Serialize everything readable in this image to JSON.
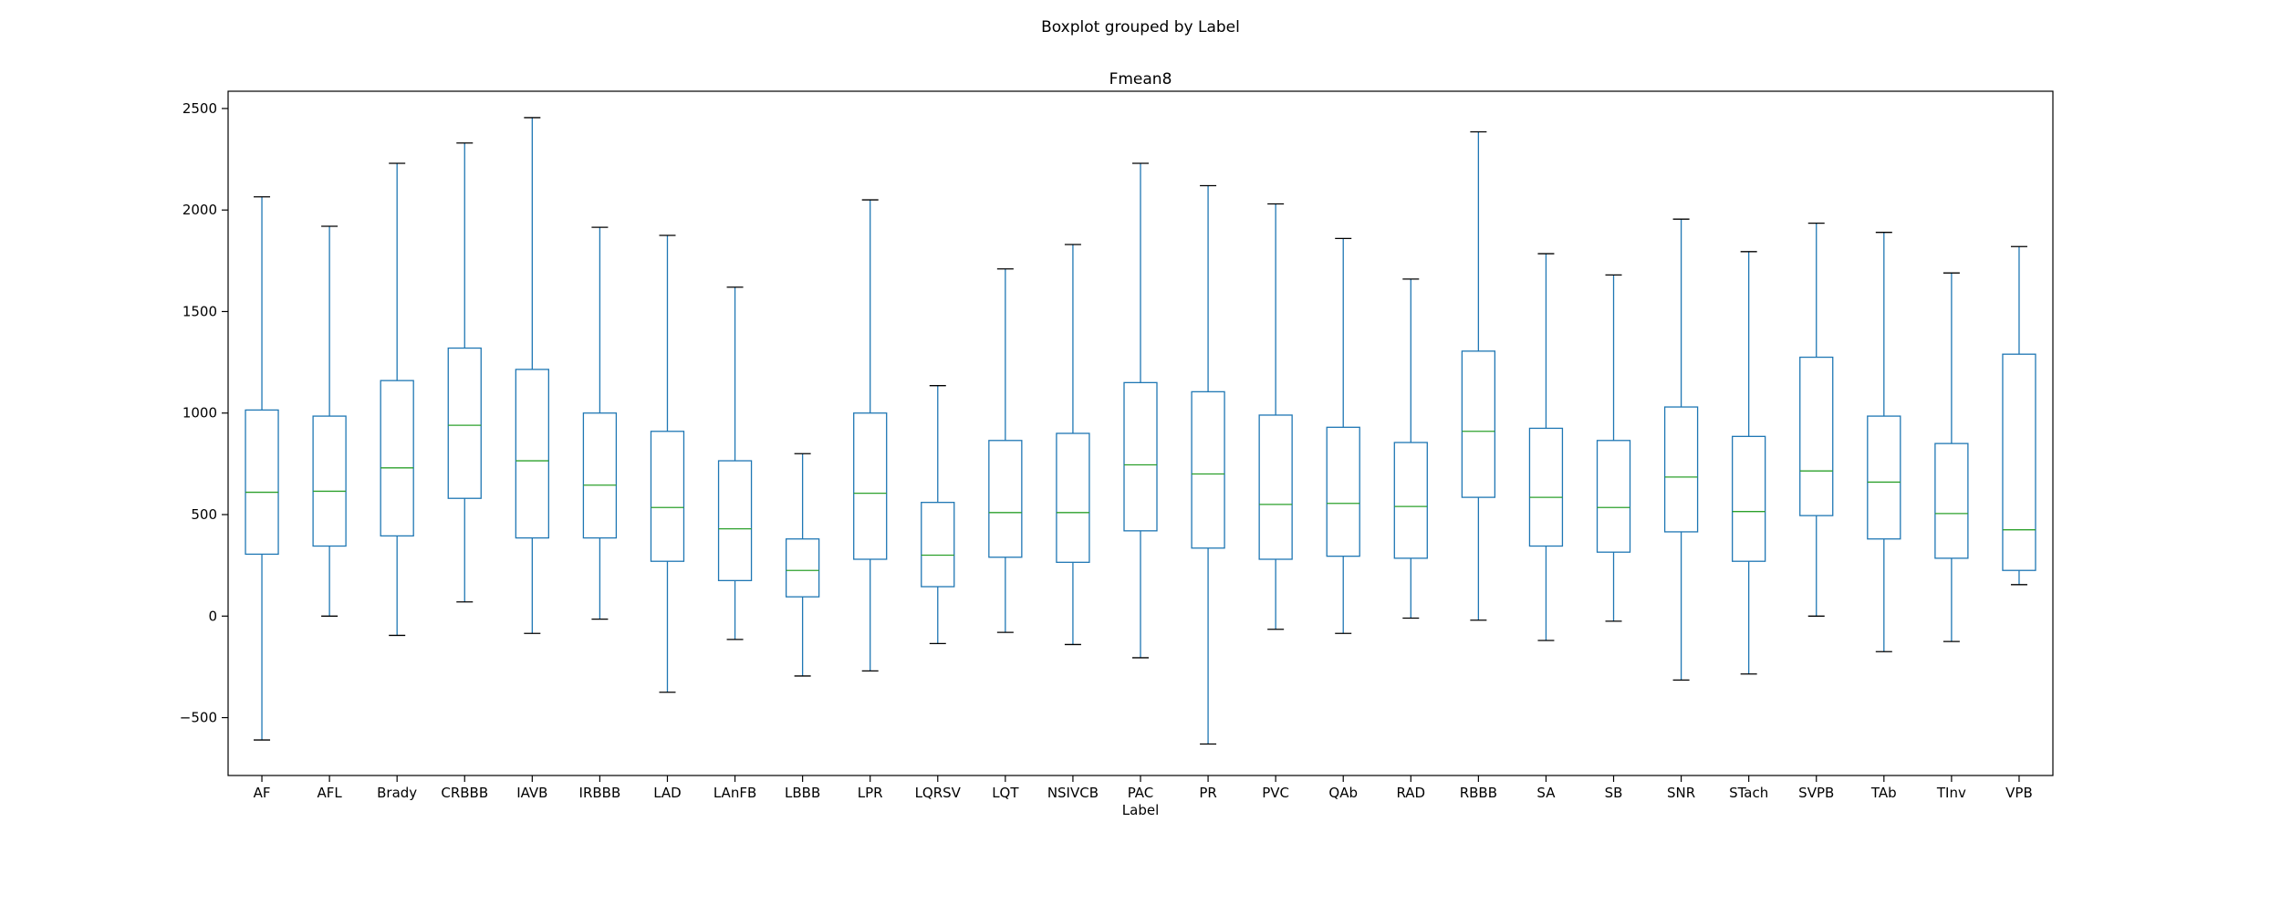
{
  "chart_data": {
    "type": "boxplot",
    "suptitle": "Boxplot grouped by Label",
    "title": "Fmean8",
    "xlabel": "Label",
    "ylabel": "",
    "ylim": [
      -785,
      2585
    ],
    "yticks": [
      -500,
      0,
      500,
      1000,
      1500,
      2000,
      2500
    ],
    "ytick_labels": [
      "−500",
      "0",
      "500",
      "1000",
      "1500",
      "2000",
      "2500"
    ],
    "grid": false,
    "box_color": "#1f77b4",
    "median_color": "#2ca02c",
    "whisker_cap_color": "#000000",
    "categories": [
      "AF",
      "AFL",
      "Brady",
      "CRBBB",
      "IAVB",
      "IRBBB",
      "LAD",
      "LAnFB",
      "LBBB",
      "LPR",
      "LQRSV",
      "LQT",
      "NSIVCB",
      "PAC",
      "PR",
      "PVC",
      "QAb",
      "RAD",
      "RBBB",
      "SA",
      "SB",
      "SNR",
      "STach",
      "SVPB",
      "TAb",
      "TInv",
      "VPB"
    ],
    "boxes": [
      {
        "label": "AF",
        "whislo": -610,
        "q1": 305,
        "med": 610,
        "q3": 1015,
        "whishi": 2065
      },
      {
        "label": "AFL",
        "whislo": 0,
        "q1": 345,
        "med": 615,
        "q3": 985,
        "whishi": 1920
      },
      {
        "label": "Brady",
        "whislo": -95,
        "q1": 395,
        "med": 730,
        "q3": 1160,
        "whishi": 2230
      },
      {
        "label": "CRBBB",
        "whislo": 70,
        "q1": 580,
        "med": 940,
        "q3": 1320,
        "whishi": 2330
      },
      {
        "label": "IAVB",
        "whislo": -85,
        "q1": 385,
        "med": 765,
        "q3": 1215,
        "whishi": 2455
      },
      {
        "label": "IRBBB",
        "whislo": -15,
        "q1": 385,
        "med": 645,
        "q3": 1000,
        "whishi": 1915
      },
      {
        "label": "LAD",
        "whislo": -375,
        "q1": 270,
        "med": 535,
        "q3": 910,
        "whishi": 1875
      },
      {
        "label": "LAnFB",
        "whislo": -115,
        "q1": 175,
        "med": 430,
        "q3": 765,
        "whishi": 1620
      },
      {
        "label": "LBBB",
        "whislo": -295,
        "q1": 95,
        "med": 225,
        "q3": 380,
        "whishi": 800
      },
      {
        "label": "LPR",
        "whislo": -270,
        "q1": 280,
        "med": 605,
        "q3": 1000,
        "whishi": 2050
      },
      {
        "label": "LQRSV",
        "whislo": -135,
        "q1": 145,
        "med": 300,
        "q3": 560,
        "whishi": 1135
      },
      {
        "label": "LQT",
        "whislo": -80,
        "q1": 290,
        "med": 510,
        "q3": 865,
        "whishi": 1710
      },
      {
        "label": "NSIVCB",
        "whislo": -140,
        "q1": 265,
        "med": 510,
        "q3": 900,
        "whishi": 1830
      },
      {
        "label": "PAC",
        "whislo": -205,
        "q1": 420,
        "med": 745,
        "q3": 1150,
        "whishi": 2230
      },
      {
        "label": "PR",
        "whislo": -630,
        "q1": 335,
        "med": 700,
        "q3": 1105,
        "whishi": 2120
      },
      {
        "label": "PVC",
        "whislo": -65,
        "q1": 280,
        "med": 550,
        "q3": 990,
        "whishi": 2030
      },
      {
        "label": "QAb",
        "whislo": -85,
        "q1": 295,
        "med": 555,
        "q3": 930,
        "whishi": 1860
      },
      {
        "label": "RAD",
        "whislo": -10,
        "q1": 285,
        "med": 540,
        "q3": 855,
        "whishi": 1660
      },
      {
        "label": "RBBB",
        "whislo": -20,
        "q1": 585,
        "med": 910,
        "q3": 1305,
        "whishi": 2385
      },
      {
        "label": "SA",
        "whislo": -120,
        "q1": 345,
        "med": 585,
        "q3": 925,
        "whishi": 1785
      },
      {
        "label": "SB",
        "whislo": -25,
        "q1": 315,
        "med": 535,
        "q3": 865,
        "whishi": 1680
      },
      {
        "label": "SNR",
        "whislo": -315,
        "q1": 415,
        "med": 685,
        "q3": 1030,
        "whishi": 1955
      },
      {
        "label": "STach",
        "whislo": -285,
        "q1": 270,
        "med": 515,
        "q3": 885,
        "whishi": 1795
      },
      {
        "label": "SVPB",
        "whislo": 0,
        "q1": 495,
        "med": 715,
        "q3": 1275,
        "whishi": 1935
      },
      {
        "label": "TAb",
        "whislo": -175,
        "q1": 380,
        "med": 660,
        "q3": 985,
        "whishi": 1890
      },
      {
        "label": "TInv",
        "whislo": -125,
        "q1": 285,
        "med": 505,
        "q3": 850,
        "whishi": 1690
      },
      {
        "label": "VPB",
        "whislo": 155,
        "q1": 225,
        "med": 425,
        "q3": 1290,
        "whishi": 1820
      }
    ]
  }
}
